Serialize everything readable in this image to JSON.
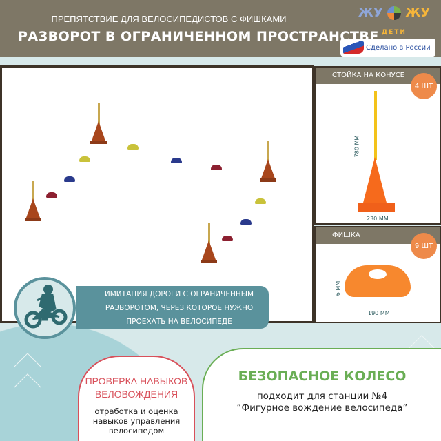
{
  "header": {
    "subtitle": "ПРЕПЯТСТВИЕ ДЛЯ ВЕЛОСИПЕДИСТОВ С ФИШКАМИ",
    "title": "РАЗВОРОТ В ОГРАНИЧЕННОМ ПРОСТРАНСТВЕ"
  },
  "logo": {
    "text_left": "ЖУ",
    "text_right": "ЖУ",
    "sub": "ДЕТИ",
    "made_in": "Сделано в России"
  },
  "cone_panel": {
    "title": "СТОЙКА НА КОНУСЕ",
    "count": "4 ШТ",
    "height": "780 ММ",
    "width": "230 ММ"
  },
  "chip_panel": {
    "title": "ФИШКА",
    "count": "9 ШТ",
    "height": "6 ММ",
    "width": "190 ММ"
  },
  "caption": {
    "lines": [
      "ИМИТАЦИЯ ДОРОГИ С ОГРАНИЧЕННЫМ",
      "РАЗВОРОТОМ, ЧЕРЕЗ КОТОРОЕ НУЖНО",
      "ПРОЕХАТЬ НА ВЕЛОСИПЕДЕ"
    ]
  },
  "skill": {
    "title": "ПРОВЕРКА НАВЫКОВ ВЕЛОВОЖДЕНИЯ",
    "text": "отработка и оценка навыков управления велосипедом"
  },
  "wheel": {
    "title": "БЕЗОПАСНОЕ КОЛЕСО",
    "line1": "подходит для станции №4",
    "line2": "“Фигурное вождение велосипеда”"
  },
  "colors": {
    "header": "#7e7766",
    "accent_orange": "#ee8a4a",
    "teal": "#5a929c",
    "red": "#d8505a",
    "green": "#6aae55",
    "chip_yellow": "#c9c23a",
    "chip_blue": "#2a3a8c",
    "chip_red": "#8c2030"
  }
}
